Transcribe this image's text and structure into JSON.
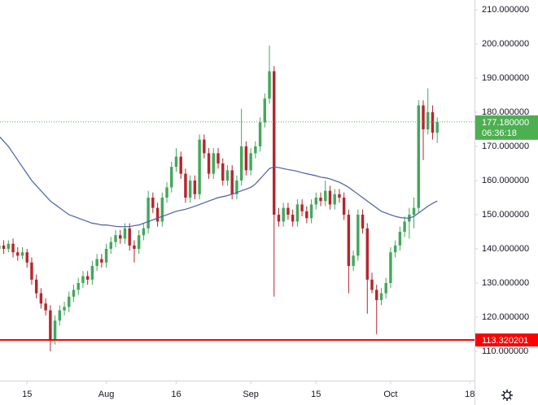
{
  "chart_data": {
    "type": "candlestick",
    "x": [
      1,
      2,
      3,
      4,
      5,
      6,
      7,
      8,
      9,
      10,
      11,
      12,
      13,
      14,
      15,
      16,
      17,
      18,
      19,
      20,
      21,
      22,
      23,
      24,
      25,
      26,
      27,
      28,
      29,
      30,
      31,
      32,
      33,
      34,
      35,
      36,
      37,
      38,
      39,
      40,
      41,
      42,
      43,
      44,
      45,
      46,
      47,
      48,
      49,
      50,
      51,
      52,
      53,
      54,
      55,
      56,
      57,
      58,
      59,
      60,
      61,
      62,
      63,
      64,
      65,
      66,
      67,
      68,
      69,
      70,
      71,
      72,
      73,
      74,
      75,
      76,
      77,
      78,
      79,
      80,
      81,
      82,
      83,
      84,
      85,
      86,
      87,
      88,
      89,
      90,
      91,
      92,
      93,
      94,
      95
    ],
    "open": [
      140,
      141,
      140,
      141.5,
      139,
      138,
      139,
      136,
      131,
      127,
      124,
      122,
      113.5,
      119,
      122,
      123,
      126,
      128,
      130,
      132,
      131,
      135,
      137,
      136,
      140,
      142,
      144,
      143,
      146,
      141,
      140,
      144,
      146,
      155,
      152,
      148,
      155,
      158,
      164,
      167,
      162,
      155,
      160,
      156,
      172,
      168,
      162,
      168,
      165,
      160,
      163,
      156,
      160,
      170,
      163,
      168,
      170,
      177,
      184,
      192,
      150,
      148,
      152,
      150,
      148,
      153,
      151,
      149,
      153,
      155,
      154,
      157,
      153,
      156,
      155,
      150,
      135,
      138,
      150,
      146,
      131,
      128,
      125,
      127,
      130,
      139,
      141,
      145,
      148,
      150,
      152,
      182,
      175,
      180,
      174
    ],
    "high": [
      142,
      142.5,
      142.5,
      143,
      140.5,
      140.5,
      140,
      137.5,
      132.5,
      128.5,
      125.5,
      123.5,
      120.5,
      123.5,
      124.5,
      127.5,
      129.5,
      131.5,
      133.5,
      133.5,
      136.5,
      138.5,
      138.5,
      141.5,
      143.5,
      145.5,
      145.5,
      147.5,
      147.5,
      142.5,
      145.5,
      147.5,
      157,
      156.5,
      153.5,
      156.5,
      159.5,
      165.5,
      169.5,
      168.5,
      163.5,
      161.5,
      161.5,
      173.5,
      173.5,
      169.5,
      169.5,
      169.5,
      166.5,
      164.5,
      164.5,
      161.5,
      181,
      171.5,
      169.5,
      171.5,
      178.5,
      185.5,
      199.5,
      193.5,
      152,
      153.5,
      153.5,
      151.5,
      154.5,
      154.5,
      152.5,
      154.5,
      156.5,
      156.5,
      160,
      158.5,
      157.5,
      157.5,
      156.5,
      151.5,
      139.5,
      151.5,
      151.5,
      147.5,
      133,
      129.5,
      128.5,
      131.5,
      140.5,
      142.5,
      146.5,
      149.5,
      152,
      155,
      183.5,
      183.5,
      187,
      182,
      178.5
    ],
    "low": [
      139,
      138.5,
      139,
      137.5,
      136.5,
      137,
      134.5,
      129.5,
      125.5,
      122.5,
      120.5,
      110,
      112,
      117.5,
      120.5,
      121.5,
      124.5,
      126.5,
      128.5,
      129.5,
      129.5,
      133.5,
      134.5,
      134.5,
      138.5,
      140.5,
      141.5,
      141.5,
      139.5,
      136,
      138.5,
      142.5,
      144.5,
      150.5,
      146.5,
      146.5,
      153.5,
      156.5,
      162.5,
      160.5,
      153.5,
      153.5,
      154.5,
      154.5,
      166.5,
      160.5,
      160.5,
      163.5,
      158.5,
      158.5,
      154.5,
      154.5,
      158.5,
      161.5,
      161.5,
      166.5,
      168.5,
      175.5,
      182.5,
      126,
      146.5,
      146.5,
      148.5,
      146.5,
      146.5,
      149.5,
      147.5,
      147.5,
      151.5,
      152.5,
      152.5,
      151.5,
      151.5,
      153.5,
      148.5,
      127,
      133.5,
      136.5,
      144.5,
      121,
      127,
      115,
      123.5,
      125.5,
      128.5,
      137.5,
      139.5,
      143.5,
      143,
      146,
      150.5,
      166,
      173.5,
      172,
      171
    ],
    "close": [
      141,
      140,
      141.5,
      139,
      138,
      139,
      136,
      131,
      127,
      124,
      122,
      113.5,
      119,
      122,
      123,
      126,
      128,
      130,
      132,
      131,
      135,
      137,
      136,
      140,
      142,
      144,
      143,
      146,
      141,
      140,
      144,
      146,
      155,
      152,
      148,
      155,
      158,
      164,
      167,
      162,
      155,
      160,
      156,
      172,
      168,
      162,
      168,
      165,
      160,
      163,
      156,
      160,
      170,
      163,
      168,
      170,
      177,
      184,
      192,
      150,
      148,
      152,
      150,
      148,
      153,
      151,
      149,
      153,
      155,
      154,
      157,
      153,
      156,
      155,
      150,
      135,
      138,
      150,
      146,
      131,
      128,
      125,
      127,
      130,
      139,
      141,
      145,
      148,
      150,
      152,
      182,
      175,
      180,
      174,
      177.18
    ],
    "up_color": "#43a85a",
    "down_color": "#b5262c",
    "moving_average": {
      "color": "#4a5fa8",
      "values": [
        173,
        171.5,
        170,
        168,
        166,
        164,
        162,
        160,
        158.5,
        157,
        155.5,
        154,
        153,
        152,
        151,
        150,
        149.5,
        149,
        148.5,
        148,
        147.5,
        147.3,
        147,
        147,
        146.8,
        146.6,
        146.5,
        146.5,
        146.5,
        146.8,
        147,
        147.5,
        148,
        148.5,
        149,
        149.5,
        150,
        150.5,
        151,
        151.3,
        151.6,
        152,
        152.5,
        153,
        153.5,
        154,
        154.5,
        155,
        155.3,
        155.6,
        156,
        156.5,
        157,
        157.5,
        158,
        159,
        160.5,
        162,
        163.5,
        164,
        163.8,
        163.5,
        163.2,
        163,
        162.7,
        162.3,
        162,
        161.7,
        161.4,
        161,
        160.8,
        160.5,
        160,
        159.5,
        158.8,
        158,
        157,
        156,
        155,
        154,
        153,
        152,
        151,
        150.5,
        150,
        149.5,
        149.2,
        149,
        149,
        149.5,
        150.5,
        151.5,
        152.5,
        153.3,
        154
      ]
    },
    "horizontal_line": {
      "value": 113.320201,
      "label": "113.320201",
      "color": "#ff0000"
    },
    "last_price": {
      "value": 177.18,
      "label": "177.180000",
      "countdown": "06:36:18",
      "color": "#4caf50"
    },
    "xlim": [
      1.2,
      103
    ],
    "xticks": [
      {
        "value": 7,
        "label": "15"
      },
      {
        "value": 24,
        "label": "Aug"
      },
      {
        "value": 39,
        "label": "16"
      },
      {
        "value": 55,
        "label": "Sep"
      },
      {
        "value": 69,
        "label": "15"
      },
      {
        "value": 85,
        "label": "Oct"
      },
      {
        "value": 102,
        "label": "18"
      }
    ],
    "ylim": [
      101.43,
      212.86
    ],
    "yticks": [
      {
        "value": 110,
        "label": "110.000000"
      },
      {
        "value": 120,
        "label": "120.000000"
      },
      {
        "value": 130,
        "label": "130.000000"
      },
      {
        "value": 140,
        "label": "140.000000"
      },
      {
        "value": 150,
        "label": "150.000000"
      },
      {
        "value": 160,
        "label": "160.000000"
      },
      {
        "value": 170,
        "label": "170.000000"
      },
      {
        "value": 180,
        "label": "180.000000"
      },
      {
        "value": 190,
        "label": "190.000000"
      },
      {
        "value": 200,
        "label": "200.000000"
      },
      {
        "value": 210,
        "label": "210.000000"
      }
    ]
  }
}
